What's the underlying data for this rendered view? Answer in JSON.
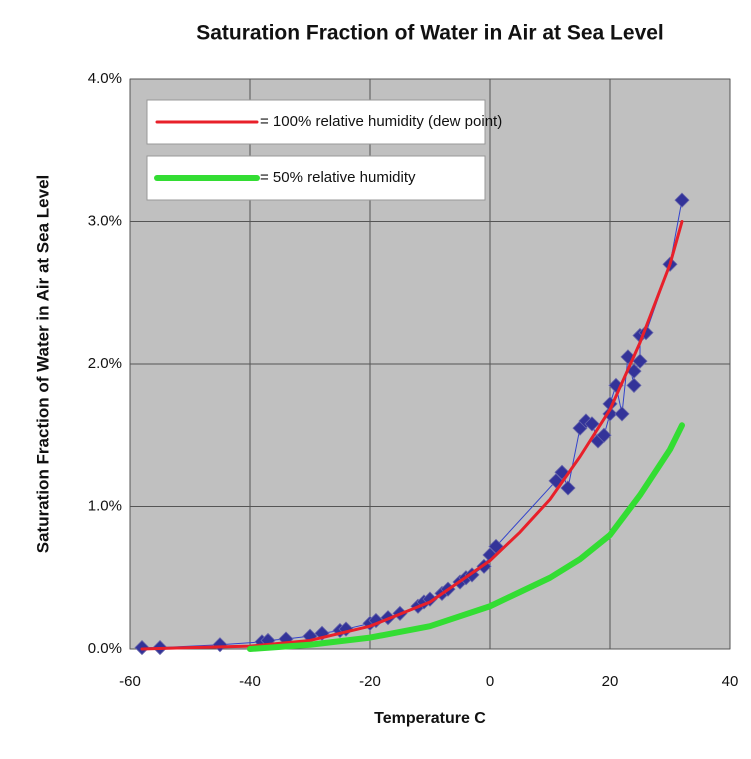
{
  "chart_data": {
    "type": "scatter",
    "title": "Saturation Fraction of Water in Air at Sea Level",
    "x_label": "Temperature C",
    "y_label": "Saturation Fraction of Water in Air at Sea Level",
    "xlim": [
      -60,
      40
    ],
    "xticks": [
      -60,
      -40,
      -20,
      0,
      20,
      40
    ],
    "ylim": [
      0,
      4
    ],
    "yticks": [
      {
        "value": 0,
        "label": "0.0%"
      },
      {
        "value": 1,
        "label": "1.0%"
      },
      {
        "value": 2,
        "label": "2.0%"
      },
      {
        "value": 3,
        "label": "3.0%"
      },
      {
        "value": 4,
        "label": "4.0%"
      }
    ],
    "grid": true,
    "legend": "upper left",
    "series": [
      {
        "color": "#333399",
        "marker": "diamond",
        "x": [
          -58,
          -55,
          -45,
          -38,
          -37,
          -34,
          -30,
          -28,
          -25,
          -24,
          -20,
          -19,
          -17,
          -15,
          -12,
          -11,
          -10,
          -8,
          -7,
          -5,
          -4,
          -3,
          -1,
          0,
          1,
          11,
          12,
          13,
          15,
          16,
          17,
          18,
          19,
          20,
          20,
          21,
          22,
          23,
          24,
          24,
          25,
          25,
          26,
          30,
          32
        ],
        "values": [
          0.01,
          0.01,
          0.03,
          0.05,
          0.06,
          0.07,
          0.09,
          0.11,
          0.13,
          0.14,
          0.18,
          0.2,
          0.22,
          0.25,
          0.3,
          0.33,
          0.35,
          0.39,
          0.42,
          0.47,
          0.5,
          0.52,
          0.58,
          0.66,
          0.72,
          1.18,
          1.24,
          1.13,
          1.55,
          1.6,
          1.58,
          1.46,
          1.5,
          1.65,
          1.72,
          1.85,
          1.65,
          2.05,
          1.85,
          1.95,
          2.02,
          2.2,
          2.22,
          2.7,
          3.15
        ]
      },
      {
        "name": "= 100% relative humidity (dew point)",
        "color": "#e8202a",
        "x": [
          -58,
          -50,
          -40,
          -30,
          -20,
          -10,
          0,
          5,
          10,
          15,
          20,
          25,
          30,
          32
        ],
        "values": [
          0.0,
          0.01,
          0.02,
          0.06,
          0.16,
          0.33,
          0.62,
          0.82,
          1.05,
          1.35,
          1.68,
          2.15,
          2.7,
          3.0
        ]
      },
      {
        "name": "= 50% relative humidity",
        "color": "#33dd33",
        "x": [
          -40,
          -30,
          -20,
          -10,
          0,
          5,
          10,
          15,
          20,
          25,
          30,
          32
        ],
        "values": [
          0.0,
          0.03,
          0.08,
          0.16,
          0.3,
          0.4,
          0.5,
          0.63,
          0.8,
          1.08,
          1.4,
          1.57
        ]
      }
    ]
  }
}
